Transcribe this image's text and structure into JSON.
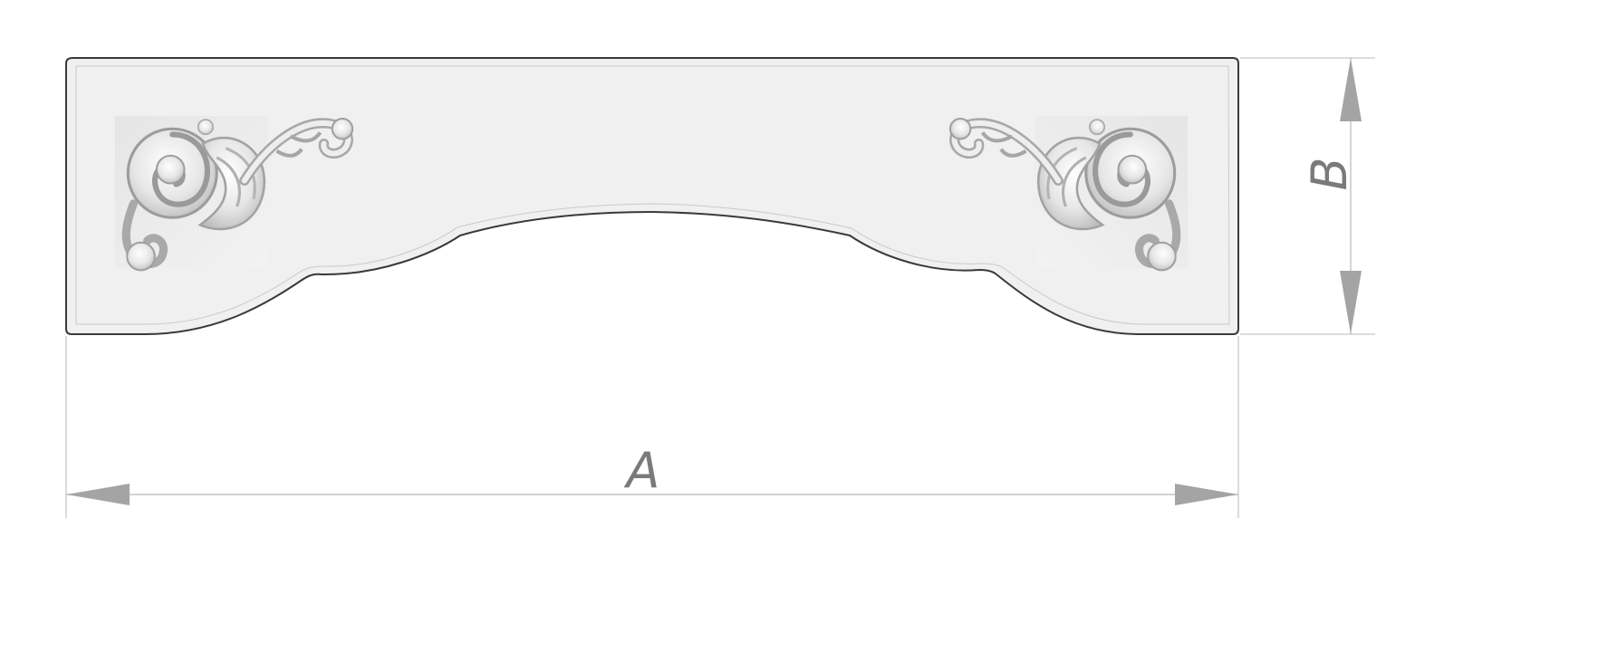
{
  "dimensions": {
    "width_label": "A",
    "height_label": "B"
  },
  "colors": {
    "panel_fill": "#f0f0f0",
    "panel_stroke": "#3a3a3a",
    "dimension_line": "#b8b8b8",
    "arrow_fill": "#a4a4a4",
    "label": "#7a7a7a",
    "ornament": "#e2e2e2"
  },
  "icons": {
    "left_ornament": "acanthus-scroll-corner-left",
    "right_ornament": "acanthus-scroll-corner-right"
  }
}
